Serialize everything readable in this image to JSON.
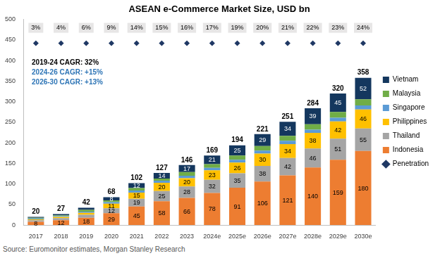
{
  "chart_data": {
    "type": "bar",
    "title": "ASEAN e-Commerce Market Size, USD bn",
    "source": "Source: Euromonitor estimates, Morgan Stanley Research",
    "categories": [
      "2017",
      "2018",
      "2019",
      "2020",
      "2021",
      "2022",
      "2023",
      "2024e",
      "2025e",
      "2026e",
      "2027e",
      "2028e",
      "2029e",
      "2030e"
    ],
    "series": [
      {
        "name": "Indonesia",
        "color": "#ed7d31",
        "data_labels": true,
        "values": [
          8,
          12,
          18,
          29,
          45,
          58,
          66,
          78,
          91,
          106,
          121,
          140,
          159,
          180
        ]
      },
      {
        "name": "Thailand",
        "color": "#a5a5a5",
        "data_labels": true,
        "values": [
          4,
          5,
          7,
          12,
          19,
          25,
          28,
          32,
          35,
          38,
          42,
          46,
          51,
          55
        ],
        "value_labels": [
          null,
          null,
          null,
          "12",
          "19",
          "25",
          "28",
          "32",
          "35",
          "38",
          "42",
          "46",
          "51",
          "55"
        ]
      },
      {
        "name": "Philippines",
        "color": "#ffc000",
        "data_labels": true,
        "values": [
          2,
          3,
          5,
          11,
          15,
          20,
          20,
          23,
          26,
          30,
          34,
          38,
          42,
          46
        ],
        "value_labels": [
          null,
          null,
          null,
          "11",
          "15",
          "20",
          "20",
          "23",
          "26",
          "30",
          "34",
          "38",
          "42",
          "46"
        ]
      },
      {
        "name": "Singapore",
        "color": "#5b9bd5",
        "data_labels": false,
        "values": [
          2,
          2,
          3,
          4,
          5,
          5,
          6,
          6,
          7,
          7,
          8,
          8,
          9,
          10
        ]
      },
      {
        "name": "Malaysia",
        "color": "#70ad47",
        "data_labels": false,
        "values": [
          2,
          2,
          4,
          4,
          6,
          5,
          9,
          9,
          10,
          11,
          12,
          13,
          14,
          15
        ]
      },
      {
        "name": "Vietnam",
        "color": "#14375e",
        "data_labels": true,
        "values": [
          2,
          3,
          5,
          8,
          12,
          14,
          17,
          21,
          25,
          29,
          34,
          39,
          45,
          52
        ],
        "value_labels": [
          null,
          null,
          null,
          "8",
          "12",
          "14",
          "17",
          "21",
          "25",
          "29",
          "34",
          "39",
          "45",
          "52"
        ]
      },
      {
        "name": "Penetration",
        "type": "scatter",
        "marker": "diamond",
        "color": "#1f3864",
        "values": [
          3,
          4,
          6,
          9,
          14,
          15,
          16,
          17,
          19,
          20,
          21,
          22,
          23,
          24
        ],
        "value_labels": [
          "3%",
          "4%",
          "6%",
          "9%",
          "14%",
          "15%",
          "16%",
          "17%",
          "19%",
          "20%",
          "21%",
          "22%",
          "23%",
          "24%"
        ]
      }
    ],
    "totals": [
      20,
      27,
      42,
      68,
      102,
      127,
      146,
      169,
      194,
      221,
      251,
      284,
      320,
      358
    ],
    "annotations": [
      {
        "text": "2019-24 CAGR: 32%",
        "color": "#000000"
      },
      {
        "text": "2024-26 CAGR: +15%",
        "color": "#2e75b6"
      },
      {
        "text": "2026-30 CAGR: +13%",
        "color": "#2e75b6"
      }
    ],
    "stacked": true,
    "legend": "right",
    "grid": false,
    "ylim": [
      0,
      500
    ],
    "yticks": [
      0,
      50,
      100,
      150,
      200,
      250,
      300,
      350,
      400,
      450,
      500
    ]
  }
}
